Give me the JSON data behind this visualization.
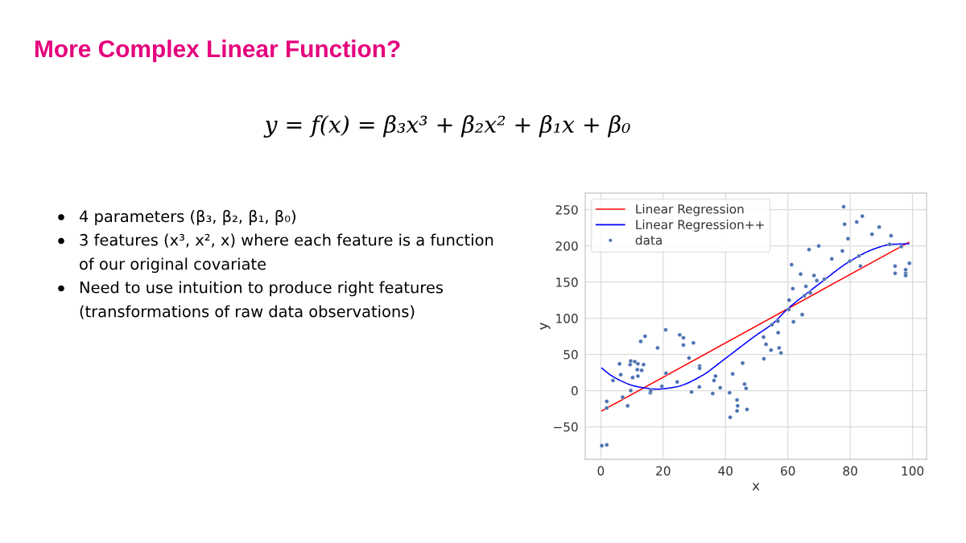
{
  "chart_data": {
    "type": "scatter",
    "title": "More Complex Linear Function?",
    "annotations": [
      "y = f(x) = β₃x³ + β₂x² + β₁x + β₀",
      "4 parameters (β₃, β₂, β₁, β₀)",
      "3 features (x³, x², x) where each feature is a function of our original covariate",
      "Need to use intuition to produce right features (transformations of raw data observations)"
    ],
    "xlabel": "x",
    "ylabel": "y",
    "xlim": [
      -5,
      104.5
    ],
    "ylim": [
      -95,
      273
    ],
    "xticks": [
      0,
      20,
      40,
      60,
      80,
      100
    ],
    "yticks": [
      -50,
      0,
      50,
      100,
      150,
      200,
      250
    ],
    "grid": true,
    "legend": "top left",
    "series": [
      {
        "name": "Linear Regression",
        "type": "line",
        "line_style": "solid",
        "color": "#ff0000",
        "x": [
          0.3,
          98.8
        ],
        "values": [
          -28,
          205
        ]
      },
      {
        "name": "Linear Regression++",
        "type": "line",
        "line_style": "solid",
        "color": "#0000ff",
        "x": [
          0.3,
          3.3,
          6.7,
          10.2,
          13.6,
          17.9,
          24,
          32.6,
          38.6,
          50,
          55,
          60.2,
          65.4,
          70.5,
          80,
          87.8,
          93,
          98.8
        ],
        "values": [
          31,
          21,
          13,
          7,
          4,
          2,
          5,
          21,
          40,
          77,
          92,
          114,
          132,
          149,
          179,
          196,
          202,
          203
        ]
      },
      {
        "name": "data",
        "marker": "circle",
        "color": "#4c72b0",
        "x": [
          0.3,
          1.9,
          1.9,
          1.9,
          3.9,
          6.0,
          6.4,
          7.0,
          8.6,
          9.4,
          9.6,
          9.6,
          10.2,
          10.9,
          11.7,
          11.9,
          11.9,
          12.8,
          13.1,
          13.7,
          14.2,
          15.9,
          16.0,
          18.2,
          19.6,
          20.8,
          20.9,
          24.5,
          25.3,
          26.5,
          26.5,
          28.3,
          29.1,
          29.7,
          31.7,
          31.7,
          31.6,
          35.9,
          36.3,
          36.8,
          38.3,
          41.3,
          41.5,
          42.3,
          43.7,
          43.9,
          43.7,
          45.5,
          46.1,
          46.6,
          46.9,
          52.2,
          52.3,
          53.0,
          54.6,
          54.9,
          56.8,
          56.9,
          57.2,
          57.8,
          60.3,
          60.4,
          61.2,
          61.6,
          61.8,
          64.1,
          64.6,
          65.3,
          65.8,
          66.8,
          67.2,
          68.4,
          69.3,
          69.9,
          71.7,
          74.1,
          77.5,
          77.9,
          78.2,
          79.3,
          79.9,
          82.1,
          82.8,
          83.3,
          83.9,
          87.0,
          89.3,
          92.7,
          93.1,
          94.4,
          94.4,
          96.4,
          97.8,
          97.8,
          97.8,
          99.0
        ],
        "values": [
          -76,
          -75,
          -15,
          -24,
          14,
          37,
          22,
          -9,
          -21,
          36,
          41,
          0,
          18,
          40,
          29,
          37,
          20,
          68,
          28,
          36,
          75,
          -3,
          0,
          59,
          6,
          84,
          24,
          12,
          77,
          73,
          63,
          45,
          -2,
          66,
          34,
          31,
          5,
          -4,
          14,
          20,
          4,
          -3,
          -37,
          23,
          -13,
          -21,
          -28,
          38,
          9,
          3,
          -26,
          74,
          44,
          64,
          56,
          91,
          96,
          80,
          59,
          52,
          112,
          125,
          174,
          141,
          95,
          161,
          105,
          131,
          144,
          195,
          135,
          159,
          152,
          200,
          154,
          182,
          193,
          254,
          230,
          210,
          179,
          233,
          186,
          172,
          241,
          216,
          226,
          202,
          214,
          172,
          162,
          199,
          167,
          162,
          159,
          176
        ]
      }
    ]
  }
}
